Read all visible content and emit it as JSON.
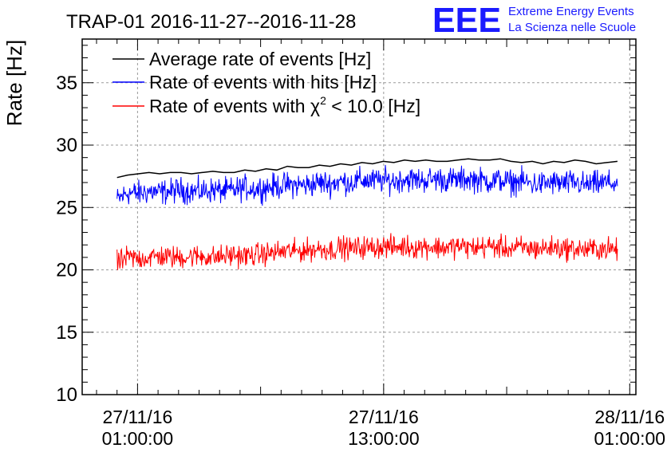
{
  "header": {
    "title": "TRAP-01 2016-11-27--2016-11-28",
    "logo_text": "EEE",
    "logo_line1": "Extreme Energy Events",
    "logo_line2": "La Scienza nelle Scuole"
  },
  "chart_data": {
    "type": "line",
    "title": "TRAP-01 2016-11-27--2016-11-28",
    "xlabel": "",
    "ylabel": "Rate [Hz]",
    "ylim": [
      10,
      38.5
    ],
    "yticks": [
      10,
      15,
      20,
      25,
      30,
      35
    ],
    "x_unit": "hours since 27/11/16 00:00:00",
    "xlim": [
      -1.7,
      25.3
    ],
    "xticks": [
      {
        "x": 1,
        "date": "27/11/16",
        "time": "01:00:00"
      },
      {
        "x": 13,
        "date": "27/11/16",
        "time": "13:00:00"
      },
      {
        "x": 25,
        "date": "28/11/16",
        "time": "01:00:00"
      }
    ],
    "grid": true,
    "legend_position": "top-left",
    "series": [
      {
        "name": "Average rate of events [Hz]",
        "color": "#000000",
        "style": "smooth",
        "x_start": 0.0,
        "x_end": 24.4,
        "values": [
          27.4,
          27.6,
          27.7,
          27.8,
          27.7,
          27.8,
          27.8,
          27.7,
          27.8,
          27.9,
          27.8,
          27.8,
          28.0,
          27.9,
          28.1,
          28.0,
          28.3,
          28.2,
          28.2,
          28.4,
          28.3,
          28.5,
          28.4,
          28.6,
          28.5,
          28.7,
          28.6,
          28.8,
          28.7,
          28.8,
          28.7,
          28.7,
          28.8,
          28.9,
          28.8,
          28.8,
          28.9,
          28.7,
          28.6,
          28.7,
          28.5,
          28.7,
          28.6,
          28.8,
          28.7,
          28.5,
          28.6,
          28.7
        ]
      },
      {
        "name": "Rate of events with hits [Hz]",
        "color": "#0000ff",
        "style": "noisy",
        "x_start": 0.0,
        "x_end": 24.4,
        "mean_values": [
          25.6,
          26.2,
          26.1,
          26.3,
          26.2,
          26.3,
          26.4,
          26.3,
          26.3,
          26.4,
          26.3,
          26.4,
          26.6,
          26.5,
          26.6,
          26.7,
          26.8,
          26.8,
          26.8,
          27.0,
          26.9,
          27.1,
          27.0,
          27.2,
          27.1,
          27.2,
          27.1,
          27.3,
          27.2,
          27.2,
          27.3,
          27.2,
          27.2,
          27.3,
          27.2,
          27.1,
          27.2,
          27.0,
          27.1,
          26.9,
          26.9,
          27.0,
          26.9,
          27.0,
          26.8,
          26.9,
          27.0,
          26.9
        ],
        "noise_amplitude": 0.5
      },
      {
        "name": "Rate of events with χ² < 10.0 [Hz]",
        "legend_text": "Rate of events with χ",
        "legend_sup": "2",
        "legend_tail": " < 10.0 [Hz]",
        "color": "#ff0000",
        "style": "noisy",
        "x_start": 0.0,
        "x_end": 24.4,
        "mean_values": [
          20.5,
          21.0,
          20.9,
          21.0,
          21.1,
          21.0,
          21.0,
          21.1,
          21.1,
          21.0,
          21.1,
          21.2,
          21.1,
          21.2,
          21.3,
          21.4,
          21.5,
          21.5,
          21.6,
          21.7,
          21.6,
          21.8,
          21.7,
          21.8,
          21.8,
          21.9,
          21.8,
          21.9,
          21.8,
          21.9,
          21.8,
          21.8,
          21.9,
          21.8,
          21.8,
          21.9,
          21.8,
          21.7,
          21.8,
          21.7,
          21.7,
          21.8,
          21.7,
          21.7,
          21.6,
          21.7,
          21.7,
          21.6
        ],
        "noise_amplitude": 0.45
      }
    ]
  }
}
